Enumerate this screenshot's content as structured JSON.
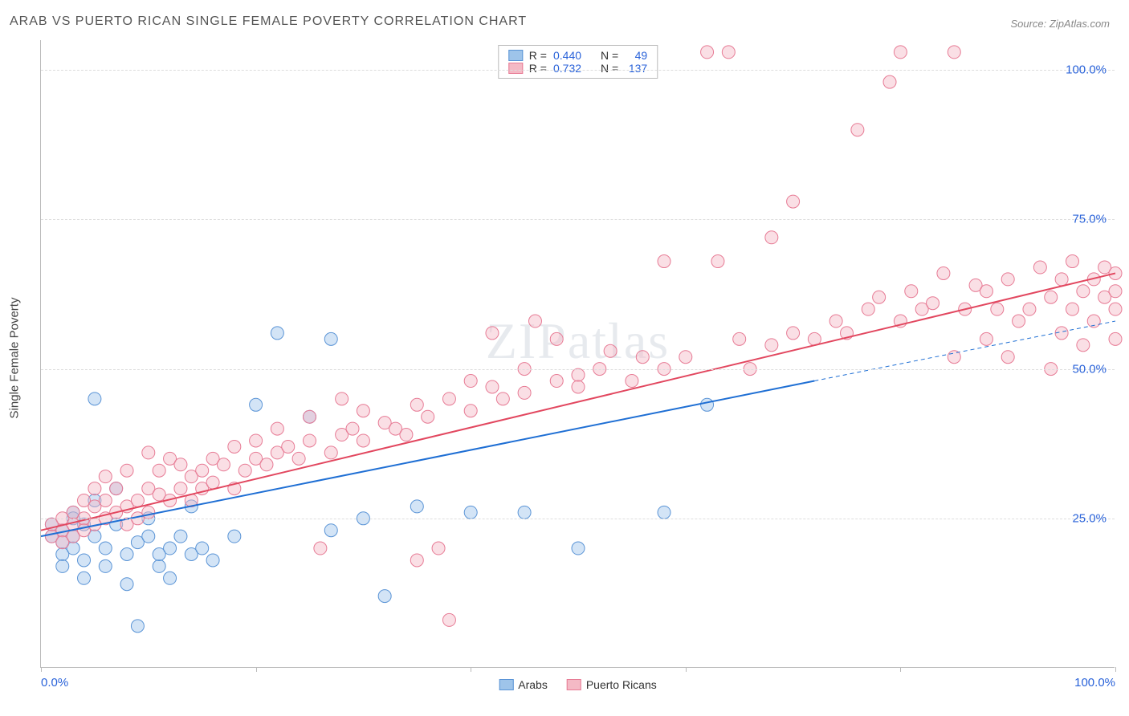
{
  "title": "ARAB VS PUERTO RICAN SINGLE FEMALE POVERTY CORRELATION CHART",
  "source": "Source: ZipAtlas.com",
  "watermark": "ZIPatlas",
  "ylabel": "Single Female Poverty",
  "chart": {
    "type": "scatter",
    "background_color": "#ffffff",
    "grid_color": "#dddddd",
    "axis_color": "#bbbbbb",
    "tick_label_color": "#2962d9",
    "tick_fontsize": 15,
    "xlim": [
      0,
      100
    ],
    "ylim": [
      0,
      105
    ],
    "y_gridlines": [
      25,
      50,
      75,
      100
    ],
    "y_tick_labels": [
      "25.0%",
      "50.0%",
      "75.0%",
      "100.0%"
    ],
    "x_tick_positions": [
      0,
      20,
      40,
      60,
      80,
      100
    ],
    "x_tick_labels": [
      "0.0%",
      "",
      "",
      "",
      "",
      "100.0%"
    ],
    "marker_radius": 8,
    "marker_opacity": 0.45,
    "line_width": 2,
    "series": [
      {
        "name": "Arabs",
        "fill_color": "#9ec4ea",
        "stroke_color": "#5a94d6",
        "line_color": "#1f6fd4",
        "R": "0.440",
        "N": "49",
        "regression": {
          "x1": 0,
          "y1": 22,
          "x2": 72,
          "y2": 48,
          "dash_extend_to_x": 100,
          "dash_extend_to_y": 58
        },
        "points": [
          [
            1,
            22
          ],
          [
            1,
            24
          ],
          [
            2,
            21
          ],
          [
            2,
            23
          ],
          [
            2,
            19
          ],
          [
            2,
            17
          ],
          [
            3,
            26
          ],
          [
            3,
            20
          ],
          [
            3,
            22
          ],
          [
            3,
            25
          ],
          [
            4,
            24
          ],
          [
            4,
            18
          ],
          [
            4,
            15
          ],
          [
            5,
            22
          ],
          [
            5,
            28
          ],
          [
            5,
            45
          ],
          [
            6,
            20
          ],
          [
            6,
            17
          ],
          [
            7,
            30
          ],
          [
            7,
            24
          ],
          [
            8,
            19
          ],
          [
            8,
            14
          ],
          [
            9,
            21
          ],
          [
            9,
            7
          ],
          [
            10,
            22
          ],
          [
            10,
            25
          ],
          [
            11,
            17
          ],
          [
            11,
            19
          ],
          [
            12,
            20
          ],
          [
            12,
            15
          ],
          [
            13,
            22
          ],
          [
            14,
            27
          ],
          [
            14,
            19
          ],
          [
            15,
            20
          ],
          [
            16,
            18
          ],
          [
            18,
            22
          ],
          [
            20,
            44
          ],
          [
            22,
            56
          ],
          [
            25,
            42
          ],
          [
            27,
            23
          ],
          [
            27,
            55
          ],
          [
            30,
            25
          ],
          [
            32,
            12
          ],
          [
            35,
            27
          ],
          [
            40,
            26
          ],
          [
            45,
            26
          ],
          [
            50,
            20
          ],
          [
            58,
            26
          ],
          [
            62,
            44
          ]
        ]
      },
      {
        "name": "Puerto Ricans",
        "fill_color": "#f4b9c5",
        "stroke_color": "#e77b95",
        "line_color": "#e2475f",
        "R": "0.732",
        "N": "137",
        "regression": {
          "x1": 0,
          "y1": 23,
          "x2": 100,
          "y2": 66
        },
        "points": [
          [
            1,
            22
          ],
          [
            1,
            24
          ],
          [
            2,
            23
          ],
          [
            2,
            25
          ],
          [
            2,
            21
          ],
          [
            3,
            24
          ],
          [
            3,
            26
          ],
          [
            3,
            22
          ],
          [
            4,
            25
          ],
          [
            4,
            28
          ],
          [
            4,
            23
          ],
          [
            5,
            24
          ],
          [
            5,
            27
          ],
          [
            5,
            30
          ],
          [
            6,
            25
          ],
          [
            6,
            28
          ],
          [
            6,
            32
          ],
          [
            7,
            26
          ],
          [
            7,
            30
          ],
          [
            8,
            27
          ],
          [
            8,
            24
          ],
          [
            8,
            33
          ],
          [
            9,
            28
          ],
          [
            9,
            25
          ],
          [
            10,
            30
          ],
          [
            10,
            26
          ],
          [
            10,
            36
          ],
          [
            11,
            29
          ],
          [
            11,
            33
          ],
          [
            12,
            28
          ],
          [
            12,
            35
          ],
          [
            13,
            30
          ],
          [
            13,
            34
          ],
          [
            14,
            32
          ],
          [
            14,
            28
          ],
          [
            15,
            33
          ],
          [
            15,
            30
          ],
          [
            16,
            35
          ],
          [
            16,
            31
          ],
          [
            17,
            34
          ],
          [
            18,
            30
          ],
          [
            18,
            37
          ],
          [
            19,
            33
          ],
          [
            20,
            35
          ],
          [
            20,
            38
          ],
          [
            21,
            34
          ],
          [
            22,
            36
          ],
          [
            22,
            40
          ],
          [
            23,
            37
          ],
          [
            24,
            35
          ],
          [
            25,
            38
          ],
          [
            25,
            42
          ],
          [
            26,
            20
          ],
          [
            27,
            36
          ],
          [
            28,
            39
          ],
          [
            28,
            45
          ],
          [
            29,
            40
          ],
          [
            30,
            38
          ],
          [
            30,
            43
          ],
          [
            32,
            41
          ],
          [
            33,
            40
          ],
          [
            34,
            39
          ],
          [
            35,
            44
          ],
          [
            35,
            18
          ],
          [
            36,
            42
          ],
          [
            37,
            20
          ],
          [
            38,
            45
          ],
          [
            38,
            8
          ],
          [
            40,
            43
          ],
          [
            40,
            48
          ],
          [
            42,
            47
          ],
          [
            42,
            56
          ],
          [
            43,
            45
          ],
          [
            45,
            46
          ],
          [
            45,
            50
          ],
          [
            46,
            58
          ],
          [
            48,
            48
          ],
          [
            48,
            55
          ],
          [
            50,
            49
          ],
          [
            50,
            47
          ],
          [
            52,
            50
          ],
          [
            53,
            53
          ],
          [
            55,
            48
          ],
          [
            56,
            52
          ],
          [
            58,
            50
          ],
          [
            58,
            68
          ],
          [
            60,
            52
          ],
          [
            62,
            103
          ],
          [
            63,
            68
          ],
          [
            64,
            103
          ],
          [
            65,
            55
          ],
          [
            66,
            50
          ],
          [
            68,
            54
          ],
          [
            68,
            72
          ],
          [
            70,
            56
          ],
          [
            70,
            78
          ],
          [
            72,
            55
          ],
          [
            74,
            58
          ],
          [
            75,
            56
          ],
          [
            76,
            90
          ],
          [
            77,
            60
          ],
          [
            78,
            62
          ],
          [
            79,
            98
          ],
          [
            80,
            58
          ],
          [
            80,
            103
          ],
          [
            81,
            63
          ],
          [
            82,
            60
          ],
          [
            83,
            61
          ],
          [
            84,
            66
          ],
          [
            85,
            52
          ],
          [
            85,
            103
          ],
          [
            86,
            60
          ],
          [
            87,
            64
          ],
          [
            88,
            55
          ],
          [
            88,
            63
          ],
          [
            89,
            60
          ],
          [
            90,
            52
          ],
          [
            90,
            65
          ],
          [
            91,
            58
          ],
          [
            92,
            60
          ],
          [
            93,
            67
          ],
          [
            94,
            50
          ],
          [
            94,
            62
          ],
          [
            95,
            56
          ],
          [
            95,
            65
          ],
          [
            96,
            60
          ],
          [
            96,
            68
          ],
          [
            97,
            54
          ],
          [
            97,
            63
          ],
          [
            98,
            58
          ],
          [
            98,
            65
          ],
          [
            99,
            62
          ],
          [
            99,
            67
          ],
          [
            100,
            60
          ],
          [
            100,
            66
          ],
          [
            100,
            63
          ],
          [
            100,
            55
          ]
        ]
      }
    ],
    "legend_top": {
      "R_label": "R =",
      "N_label": "N ="
    },
    "legend_bottom": {
      "items": [
        "Arabs",
        "Puerto Ricans"
      ]
    }
  }
}
